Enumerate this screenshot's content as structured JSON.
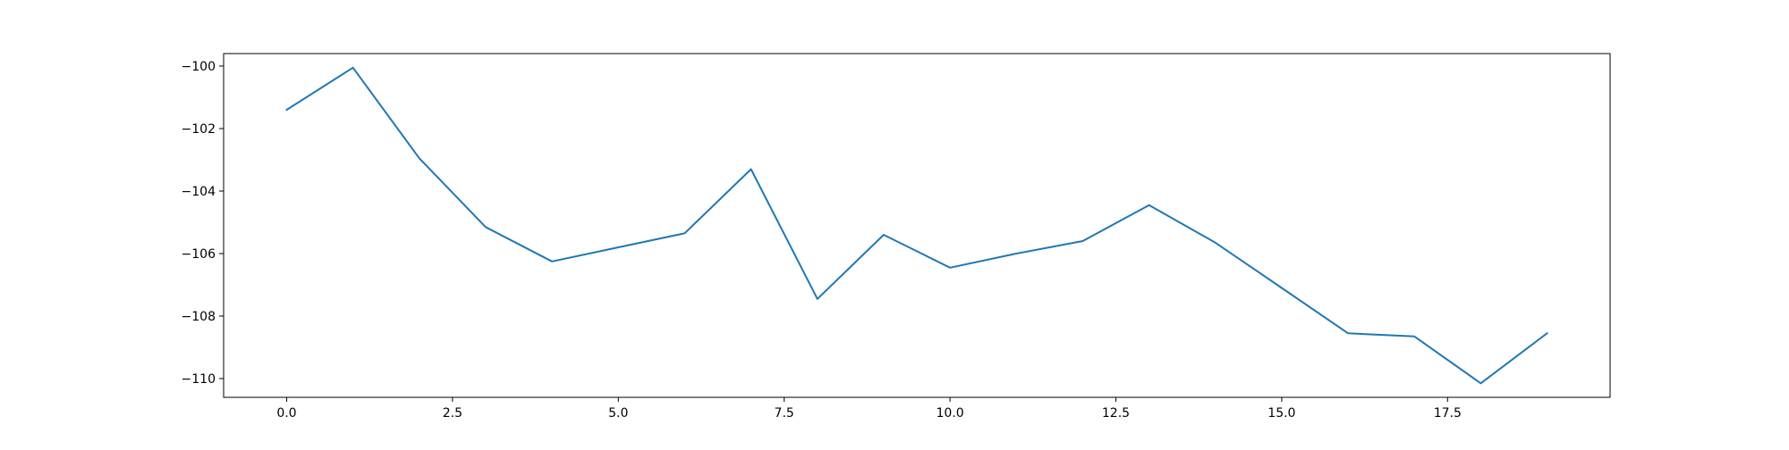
{
  "chart_data": {
    "type": "line",
    "title": "",
    "xlabel": "",
    "ylabel": "",
    "x": [
      0,
      1,
      2,
      3,
      4,
      5,
      6,
      7,
      8,
      9,
      10,
      11,
      12,
      13,
      14,
      15,
      16,
      17,
      18,
      19
    ],
    "series": [
      {
        "values": [
          -101.4,
          -100.05,
          -102.95,
          -105.15,
          -106.25,
          -105.8,
          -105.35,
          -103.3,
          -107.45,
          -105.4,
          -106.45,
          -106.0,
          -105.6,
          -104.45,
          -105.65,
          -107.1,
          -108.55,
          -108.65,
          -110.15,
          -108.55
        ],
        "color": "#1f77b4"
      }
    ],
    "xlim": [
      -0.95,
      19.95
    ],
    "ylim": [
      -110.6,
      -99.6
    ],
    "xticks": [
      0.0,
      2.5,
      5.0,
      7.5,
      10.0,
      12.5,
      15.0,
      17.5
    ],
    "xtick_labels": [
      "0.0",
      "2.5",
      "5.0",
      "7.5",
      "10.0",
      "12.5",
      "15.0",
      "17.5"
    ],
    "yticks": [
      -100,
      -102,
      -104,
      -106,
      -108,
      -110
    ],
    "ytick_labels": [
      "−100",
      "−102",
      "−104",
      "−106",
      "−108",
      "−110"
    ],
    "grid": false,
    "legend": "none"
  }
}
